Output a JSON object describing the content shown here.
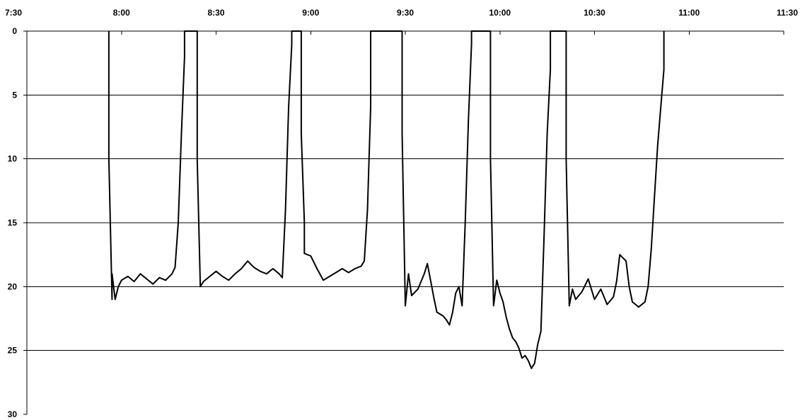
{
  "chart_data": {
    "type": "line",
    "title": "",
    "xlabel": "",
    "ylabel": "",
    "x_ticks": [
      "7:30",
      "8:00",
      "8:30",
      "9:00",
      "9:30",
      "10:00",
      "10:30",
      "11:00",
      "11:30"
    ],
    "y_ticks": [
      "0",
      "5",
      "10",
      "15",
      "20",
      "25",
      "30"
    ],
    "xlim": [
      "7:30",
      "11:30"
    ],
    "ylim": [
      0,
      30
    ],
    "y_inverted": true,
    "grid": {
      "horizontal": true,
      "vertical": false
    },
    "legend": "none",
    "line_color": "#000000",
    "series": [
      {
        "points": [
          [
            "7:56",
            0
          ],
          [
            "7:56",
            10
          ],
          [
            "7:57",
            21
          ],
          [
            "7:57",
            19
          ],
          [
            "7:58",
            21
          ],
          [
            "7:59",
            20
          ],
          [
            "8:00",
            19.5
          ],
          [
            "8:02",
            19.2
          ],
          [
            "8:04",
            19.6
          ],
          [
            "8:06",
            19.0
          ],
          [
            "8:08",
            19.4
          ],
          [
            "8:10",
            19.8
          ],
          [
            "8:12",
            19.3
          ],
          [
            "8:14",
            19.5
          ],
          [
            "8:16",
            19.0
          ],
          [
            "8:17",
            18.5
          ],
          [
            "8:18",
            15
          ],
          [
            "8:19",
            8
          ],
          [
            "8:20",
            2
          ],
          [
            "8:20",
            0
          ],
          [
            "8:24",
            0
          ],
          [
            "8:24",
            10
          ],
          [
            "8:25",
            20
          ],
          [
            "8:26",
            19.6
          ],
          [
            "8:28",
            19.2
          ],
          [
            "8:30",
            18.8
          ],
          [
            "8:32",
            19.2
          ],
          [
            "8:34",
            19.5
          ],
          [
            "8:36",
            19.0
          ],
          [
            "8:38",
            18.6
          ],
          [
            "8:40",
            18.0
          ],
          [
            "8:42",
            18.5
          ],
          [
            "8:44",
            18.8
          ],
          [
            "8:46",
            19.0
          ],
          [
            "8:48",
            18.6
          ],
          [
            "8:50",
            19.0
          ],
          [
            "8:51",
            19.3
          ],
          [
            "8:52",
            14
          ],
          [
            "8:53",
            6
          ],
          [
            "8:54",
            1
          ],
          [
            "8:54",
            0
          ],
          [
            "8:57",
            0
          ],
          [
            "8:57",
            8
          ],
          [
            "8:58",
            15
          ],
          [
            "8:58",
            17.4
          ],
          [
            "9:00",
            17.6
          ],
          [
            "9:02",
            18.6
          ],
          [
            "9:04",
            19.5
          ],
          [
            "9:06",
            19.2
          ],
          [
            "9:08",
            18.9
          ],
          [
            "9:10",
            18.6
          ],
          [
            "9:12",
            18.9
          ],
          [
            "9:14",
            18.6
          ],
          [
            "9:16",
            18.4
          ],
          [
            "9:17",
            18.0
          ],
          [
            "9:18",
            14
          ],
          [
            "9:19",
            6
          ],
          [
            "9:19",
            0
          ],
          [
            "9:29",
            0
          ],
          [
            "9:29",
            8
          ],
          [
            "9:30",
            21.5
          ],
          [
            "9:31",
            19
          ],
          [
            "9:32",
            20.7
          ],
          [
            "9:34",
            20.2
          ],
          [
            "9:36",
            19.0
          ],
          [
            "9:37",
            18.2
          ],
          [
            "9:38",
            19.5
          ],
          [
            "9:39",
            20.8
          ],
          [
            "9:40",
            22.0
          ],
          [
            "9:42",
            22.3
          ],
          [
            "9:43",
            22.6
          ],
          [
            "9:44",
            23.0
          ],
          [
            "9:45",
            22.0
          ],
          [
            "9:46",
            20.5
          ],
          [
            "9:47",
            20.0
          ],
          [
            "9:48",
            21.5
          ],
          [
            "9:49",
            15
          ],
          [
            "9:50",
            7
          ],
          [
            "9:51",
            1
          ],
          [
            "9:51",
            0
          ],
          [
            "9:57",
            0
          ],
          [
            "9:57",
            10
          ],
          [
            "9:58",
            21.5
          ],
          [
            "9:59",
            19.5
          ],
          [
            "10:00",
            20.5
          ],
          [
            "10:01",
            21.2
          ],
          [
            "10:02",
            22.4
          ],
          [
            "10:03",
            23.3
          ],
          [
            "10:04",
            24.0
          ],
          [
            "10:05",
            24.3
          ],
          [
            "10:06",
            24.8
          ],
          [
            "10:07",
            25.6
          ],
          [
            "10:08",
            25.4
          ],
          [
            "10:09",
            25.8
          ],
          [
            "10:10",
            26.4
          ],
          [
            "10:11",
            26.0
          ],
          [
            "10:12",
            24.5
          ],
          [
            "10:13",
            23.5
          ],
          [
            "10:14",
            16
          ],
          [
            "10:15",
            8
          ],
          [
            "10:16",
            3
          ],
          [
            "10:16",
            0
          ],
          [
            "10:21",
            0
          ],
          [
            "10:21",
            10
          ],
          [
            "10:22",
            21.5
          ],
          [
            "10:23",
            20.2
          ],
          [
            "10:24",
            21.0
          ],
          [
            "10:26",
            20.4
          ],
          [
            "10:28",
            19.4
          ],
          [
            "10:30",
            21.0
          ],
          [
            "10:32",
            20.2
          ],
          [
            "10:34",
            21.4
          ],
          [
            "10:36",
            20.8
          ],
          [
            "10:37",
            19.6
          ],
          [
            "10:38",
            17.5
          ],
          [
            "10:40",
            18.0
          ],
          [
            "10:41",
            20.0
          ],
          [
            "10:42",
            21.2
          ],
          [
            "10:44",
            21.6
          ],
          [
            "10:46",
            21.2
          ],
          [
            "10:47",
            20.0
          ],
          [
            "10:48",
            17
          ],
          [
            "10:49",
            13
          ],
          [
            "10:50",
            9
          ],
          [
            "10:51",
            6
          ],
          [
            "10:52",
            3
          ],
          [
            "10:52",
            0
          ]
        ]
      }
    ]
  }
}
